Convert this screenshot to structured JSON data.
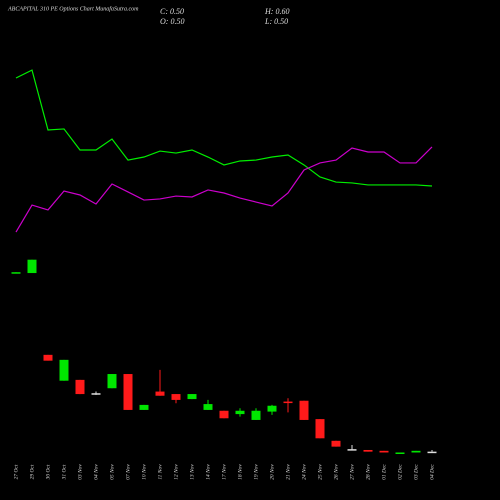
{
  "chart_data": {
    "type": "candlestick",
    "title": "ABCAPITAL 310 PE Options Chart MunafaSutra.com",
    "ohlc_text": {
      "close": "C: 0.50",
      "high": "H: 0.60",
      "open": "O: 0.50",
      "low": "L: 0.50"
    },
    "categories": [
      "27 Oct",
      "29 Oct",
      "30 Oct",
      "31 Oct",
      "03 Nov",
      "04 Nov",
      "05 Nov",
      "07 Nov",
      "10 Nov",
      "11 Nov",
      "12 Nov",
      "13 Nov",
      "14 Nov",
      "17 Nov",
      "18 Nov",
      "19 Nov",
      "20 Nov",
      "21 Nov",
      "24 Nov",
      "25 Nov",
      "26 Nov",
      "27 Nov",
      "28 Nov",
      "01 Dec",
      "02 Dec",
      "03 Dec",
      "04 Dec"
    ],
    "open": [
      11.2,
      11.2,
      6.3,
      4.75,
      4.8,
      4.0,
      4.3,
      5.15,
      3.0,
      4.1,
      3.95,
      3.65,
      3.0,
      2.95,
      2.75,
      2.4,
      2.9,
      3.5,
      3.55,
      2.45,
      1.15,
      0.65,
      0.6,
      0.55,
      0.4,
      0.45,
      0.5
    ],
    "high": [
      11.25,
      12.0,
      6.3,
      6.0,
      4.8,
      4.1,
      5.15,
      5.15,
      3.3,
      5.4,
      3.95,
      3.95,
      3.6,
      2.95,
      3.1,
      3.1,
      3.3,
      3.7,
      3.55,
      2.45,
      1.15,
      0.9,
      0.6,
      0.55,
      0.45,
      0.55,
      0.6
    ],
    "low": [
      11.2,
      11.2,
      5.95,
      4.75,
      3.95,
      3.9,
      4.3,
      3.0,
      3.0,
      3.85,
      3.4,
      3.65,
      3.0,
      2.5,
      2.6,
      2.4,
      2.7,
      2.85,
      2.4,
      1.3,
      0.8,
      0.6,
      0.5,
      0.45,
      0.4,
      0.45,
      0.5
    ],
    "close": [
      11.25,
      12.0,
      5.95,
      6.0,
      3.95,
      4.0,
      5.15,
      3.0,
      3.3,
      3.85,
      3.6,
      3.95,
      3.35,
      2.5,
      2.95,
      2.95,
      3.25,
      3.45,
      2.4,
      1.3,
      0.8,
      0.65,
      0.5,
      0.45,
      0.45,
      0.55,
      0.5
    ],
    "ylim": [
      0,
      13
    ],
    "up_color": "#00e600",
    "down_color": "#ff1a1a",
    "flat_color": "#dddddd",
    "line_ylim": [
      0,
      100
    ],
    "series": [
      {
        "color": "#00ee00",
        "values": [
          90,
          94.4,
          61.1,
          61.7,
          50,
          50,
          56.1,
          44.4,
          46.1,
          49.4,
          48.3,
          50,
          46.1,
          41.7,
          43.9,
          44.4,
          46.1,
          47.2,
          41.7,
          35,
          32.2,
          31.7,
          30.6,
          30.6,
          30.6,
          30.6,
          30
        ]
      },
      {
        "color": "#cc00cc",
        "values": [
          4.4,
          19.4,
          16.7,
          27.2,
          25,
          20,
          31.1,
          26.7,
          22.2,
          22.8,
          24.4,
          23.9,
          27.8,
          26.1,
          23.3,
          21.1,
          18.9,
          26.1,
          38.9,
          42.8,
          44.4,
          51.1,
          48.9,
          48.9,
          42.8,
          42.8,
          51.7
        ]
      }
    ]
  }
}
